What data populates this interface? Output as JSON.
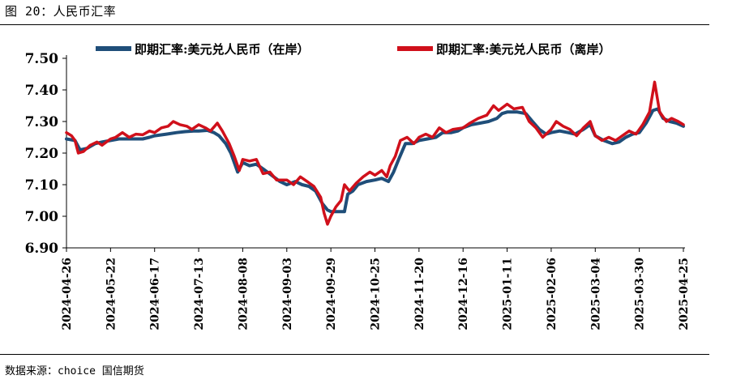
{
  "figure": {
    "title": "图 20：人民币汇率",
    "source": "数据来源：choice 国信期货"
  },
  "chart_data": {
    "type": "line",
    "title": "",
    "xlabel": "",
    "ylabel": "",
    "ylim": [
      6.9,
      7.5
    ],
    "y_ticks": [
      "7.50",
      "7.40",
      "7.30",
      "7.20",
      "7.10",
      "7.00",
      "6.90"
    ],
    "x_tick_labels": [
      "2024-04-26",
      "2024-05-22",
      "2024-06-17",
      "2024-07-13",
      "2024-08-08",
      "2024-09-03",
      "2024-09-29",
      "2024-10-25",
      "2024-11-20",
      "2024-12-16",
      "2025-01-11",
      "2025-02-06",
      "2025-03-04",
      "2025-03-30",
      "2025-04-25"
    ],
    "x_range": [
      "2024-04-26",
      "2025-04-25"
    ],
    "grid": false,
    "legend_position": "top",
    "series": [
      {
        "name": "即期汇率:美元兑人民币（在岸）",
        "color": "#1f4e79",
        "points": [
          [
            "2024-04-26",
            7.245
          ],
          [
            "2024-05-01",
            7.24
          ],
          [
            "2024-05-04",
            7.21
          ],
          [
            "2024-05-08",
            7.215
          ],
          [
            "2024-05-13",
            7.23
          ],
          [
            "2024-05-17",
            7.235
          ],
          [
            "2024-05-22",
            7.24
          ],
          [
            "2024-05-27",
            7.245
          ],
          [
            "2024-06-01",
            7.245
          ],
          [
            "2024-06-05",
            7.245
          ],
          [
            "2024-06-10",
            7.245
          ],
          [
            "2024-06-14",
            7.25
          ],
          [
            "2024-06-17",
            7.255
          ],
          [
            "2024-06-24",
            7.26
          ],
          [
            "2024-06-30",
            7.265
          ],
          [
            "2024-07-05",
            7.268
          ],
          [
            "2024-07-10",
            7.27
          ],
          [
            "2024-07-13",
            7.27
          ],
          [
            "2024-07-18",
            7.272
          ],
          [
            "2024-07-22",
            7.265
          ],
          [
            "2024-07-25",
            7.255
          ],
          [
            "2024-07-29",
            7.23
          ],
          [
            "2024-08-01",
            7.2
          ],
          [
            "2024-08-05",
            7.14
          ],
          [
            "2024-08-08",
            7.17
          ],
          [
            "2024-08-12",
            7.16
          ],
          [
            "2024-08-16",
            7.165
          ],
          [
            "2024-08-20",
            7.15
          ],
          [
            "2024-08-25",
            7.13
          ],
          [
            "2024-08-30",
            7.11
          ],
          [
            "2024-09-03",
            7.1
          ],
          [
            "2024-09-08",
            7.11
          ],
          [
            "2024-09-12",
            7.1
          ],
          [
            "2024-09-16",
            7.095
          ],
          [
            "2024-09-20",
            7.08
          ],
          [
            "2024-09-24",
            7.04
          ],
          [
            "2024-09-27",
            7.02
          ],
          [
            "2024-09-29",
            7.015
          ],
          [
            "2024-10-03",
            7.015
          ],
          [
            "2024-10-07",
            7.015
          ],
          [
            "2024-10-09",
            7.07
          ],
          [
            "2024-10-12",
            7.08
          ],
          [
            "2024-10-15",
            7.1
          ],
          [
            "2024-10-20",
            7.11
          ],
          [
            "2024-10-25",
            7.115
          ],
          [
            "2024-10-29",
            7.12
          ],
          [
            "2024-11-02",
            7.11
          ],
          [
            "2024-11-05",
            7.14
          ],
          [
            "2024-11-08",
            7.18
          ],
          [
            "2024-11-12",
            7.23
          ],
          [
            "2024-11-16",
            7.23
          ],
          [
            "2024-11-20",
            7.24
          ],
          [
            "2024-11-25",
            7.245
          ],
          [
            "2024-11-30",
            7.25
          ],
          [
            "2024-12-04",
            7.265
          ],
          [
            "2024-12-09",
            7.265
          ],
          [
            "2024-12-13",
            7.27
          ],
          [
            "2024-12-16",
            7.28
          ],
          [
            "2024-12-21",
            7.29
          ],
          [
            "2024-12-26",
            7.295
          ],
          [
            "2024-12-31",
            7.3
          ],
          [
            "2025-01-05",
            7.31
          ],
          [
            "2025-01-08",
            7.325
          ],
          [
            "2025-01-11",
            7.33
          ],
          [
            "2025-01-17",
            7.33
          ],
          [
            "2025-01-22",
            7.325
          ],
          [
            "2025-01-26",
            7.3
          ],
          [
            "2025-01-30",
            7.275
          ],
          [
            "2025-02-03",
            7.26
          ],
          [
            "2025-02-06",
            7.265
          ],
          [
            "2025-02-11",
            7.27
          ],
          [
            "2025-02-16",
            7.265
          ],
          [
            "2025-02-20",
            7.26
          ],
          [
            "2025-02-25",
            7.275
          ],
          [
            "2025-03-01",
            7.29
          ],
          [
            "2025-03-04",
            7.255
          ],
          [
            "2025-03-09",
            7.24
          ],
          [
            "2025-03-14",
            7.23
          ],
          [
            "2025-03-18",
            7.235
          ],
          [
            "2025-03-22",
            7.25
          ],
          [
            "2025-03-26",
            7.26
          ],
          [
            "2025-03-30",
            7.265
          ],
          [
            "2025-04-03",
            7.295
          ],
          [
            "2025-04-07",
            7.335
          ],
          [
            "2025-04-10",
            7.34
          ],
          [
            "2025-04-13",
            7.31
          ],
          [
            "2025-04-17",
            7.3
          ],
          [
            "2025-04-21",
            7.295
          ],
          [
            "2025-04-25",
            7.285
          ]
        ]
      },
      {
        "name": "即期汇率:美元兑人民币（离岸）",
        "color": "#d0101b",
        "points": [
          [
            "2024-04-26",
            7.265
          ],
          [
            "2024-04-29",
            7.255
          ],
          [
            "2024-05-01",
            7.24
          ],
          [
            "2024-05-03",
            7.2
          ],
          [
            "2024-05-06",
            7.205
          ],
          [
            "2024-05-10",
            7.225
          ],
          [
            "2024-05-14",
            7.235
          ],
          [
            "2024-05-17",
            7.225
          ],
          [
            "2024-05-22",
            7.245
          ],
          [
            "2024-05-25",
            7.25
          ],
          [
            "2024-05-29",
            7.265
          ],
          [
            "2024-06-02",
            7.25
          ],
          [
            "2024-06-06",
            7.26
          ],
          [
            "2024-06-10",
            7.258
          ],
          [
            "2024-06-14",
            7.27
          ],
          [
            "2024-06-17",
            7.265
          ],
          [
            "2024-06-21",
            7.28
          ],
          [
            "2024-06-25",
            7.285
          ],
          [
            "2024-06-28",
            7.3
          ],
          [
            "2024-07-02",
            7.29
          ],
          [
            "2024-07-06",
            7.285
          ],
          [
            "2024-07-09",
            7.275
          ],
          [
            "2024-07-13",
            7.29
          ],
          [
            "2024-07-17",
            7.28
          ],
          [
            "2024-07-20",
            7.27
          ],
          [
            "2024-07-24",
            7.295
          ],
          [
            "2024-07-27",
            7.27
          ],
          [
            "2024-07-31",
            7.23
          ],
          [
            "2024-08-03",
            7.19
          ],
          [
            "2024-08-06",
            7.145
          ],
          [
            "2024-08-08",
            7.18
          ],
          [
            "2024-08-12",
            7.175
          ],
          [
            "2024-08-16",
            7.18
          ],
          [
            "2024-08-20",
            7.135
          ],
          [
            "2024-08-24",
            7.14
          ],
          [
            "2024-08-28",
            7.115
          ],
          [
            "2024-09-03",
            7.115
          ],
          [
            "2024-09-07",
            7.1
          ],
          [
            "2024-09-11",
            7.125
          ],
          [
            "2024-09-15",
            7.11
          ],
          [
            "2024-09-19",
            7.095
          ],
          [
            "2024-09-23",
            7.06
          ],
          [
            "2024-09-25",
            7.01
          ],
          [
            "2024-09-27",
            6.975
          ],
          [
            "2024-09-29",
            7.0
          ],
          [
            "2024-10-02",
            7.03
          ],
          [
            "2024-10-05",
            7.05
          ],
          [
            "2024-10-07",
            7.1
          ],
          [
            "2024-10-10",
            7.08
          ],
          [
            "2024-10-14",
            7.105
          ],
          [
            "2024-10-18",
            7.125
          ],
          [
            "2024-10-22",
            7.14
          ],
          [
            "2024-10-25",
            7.13
          ],
          [
            "2024-10-29",
            7.145
          ],
          [
            "2024-11-01",
            7.125
          ],
          [
            "2024-11-03",
            7.16
          ],
          [
            "2024-11-06",
            7.19
          ],
          [
            "2024-11-09",
            7.24
          ],
          [
            "2024-11-13",
            7.25
          ],
          [
            "2024-11-17",
            7.23
          ],
          [
            "2024-11-20",
            7.25
          ],
          [
            "2024-11-24",
            7.26
          ],
          [
            "2024-11-28",
            7.25
          ],
          [
            "2024-12-02",
            7.28
          ],
          [
            "2024-12-06",
            7.265
          ],
          [
            "2024-12-10",
            7.275
          ],
          [
            "2024-12-16",
            7.28
          ],
          [
            "2024-12-20",
            7.295
          ],
          [
            "2024-12-25",
            7.31
          ],
          [
            "2024-12-30",
            7.32
          ],
          [
            "2025-01-03",
            7.35
          ],
          [
            "2025-01-06",
            7.335
          ],
          [
            "2025-01-11",
            7.355
          ],
          [
            "2025-01-15",
            7.34
          ],
          [
            "2025-01-20",
            7.345
          ],
          [
            "2025-01-24",
            7.3
          ],
          [
            "2025-01-28",
            7.28
          ],
          [
            "2025-02-01",
            7.25
          ],
          [
            "2025-02-06",
            7.275
          ],
          [
            "2025-02-09",
            7.3
          ],
          [
            "2025-02-13",
            7.285
          ],
          [
            "2025-02-17",
            7.275
          ],
          [
            "2025-02-21",
            7.255
          ],
          [
            "2025-02-25",
            7.28
          ],
          [
            "2025-03-01",
            7.3
          ],
          [
            "2025-03-04",
            7.255
          ],
          [
            "2025-03-08",
            7.24
          ],
          [
            "2025-03-12",
            7.25
          ],
          [
            "2025-03-16",
            7.24
          ],
          [
            "2025-03-20",
            7.255
          ],
          [
            "2025-03-24",
            7.27
          ],
          [
            "2025-03-28",
            7.26
          ],
          [
            "2025-04-01",
            7.29
          ],
          [
            "2025-04-05",
            7.33
          ],
          [
            "2025-04-08",
            7.425
          ],
          [
            "2025-04-11",
            7.33
          ],
          [
            "2025-04-15",
            7.3
          ],
          [
            "2025-04-18",
            7.31
          ],
          [
            "2025-04-22",
            7.3
          ],
          [
            "2025-04-25",
            7.29
          ]
        ]
      }
    ]
  }
}
